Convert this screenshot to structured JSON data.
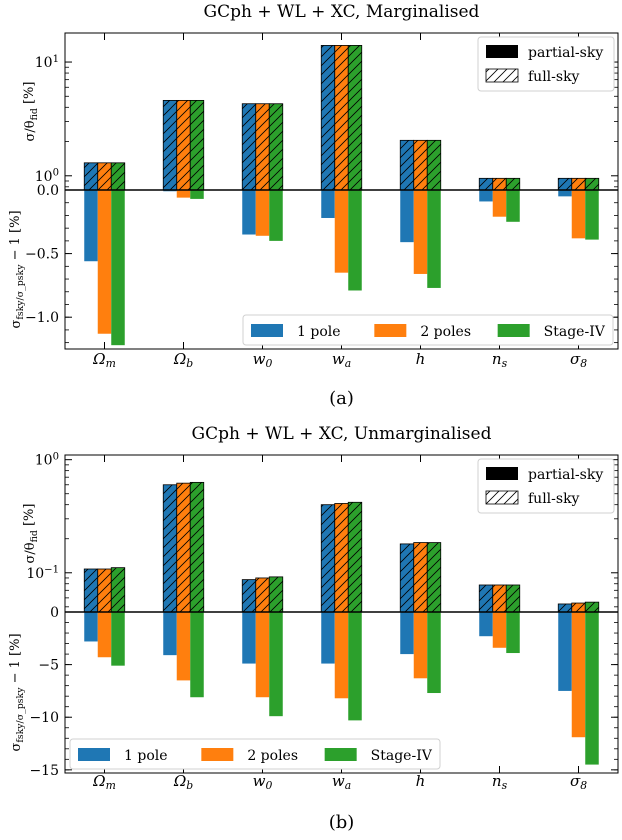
{
  "categories": [
    "Ω_m",
    "Ω_b",
    "w_0",
    "w_a",
    "h",
    "n_s",
    "σ_8"
  ],
  "colors": {
    "1 pole": "#1f77b4",
    "2 poles": "#ff7f0e",
    "Stage-IV": "#2ca02c"
  },
  "chart_data": [
    {
      "id": "a",
      "caption": "(a)",
      "title": "GCph + WL + XC, Marginalised",
      "type": "bar",
      "top_panel": {
        "ylabel": "σ/θ_fid [%]",
        "yscale": "log",
        "ylim": [
          0.75,
          18
        ],
        "yticks": [
          {
            "v": 1,
            "label": "10^0"
          },
          {
            "v": 10,
            "label": "10^1"
          }
        ],
        "legend": [
          "partial-sky",
          "full-sky"
        ],
        "legend_position": "top-right",
        "series": [
          {
            "name": "1 pole",
            "values": [
              1.3,
              4.6,
              4.3,
              14.0,
              2.05,
              0.95,
              0.95
            ]
          },
          {
            "name": "2 poles",
            "values": [
              1.3,
              4.6,
              4.3,
              14.0,
              2.05,
              0.95,
              0.95
            ]
          },
          {
            "name": "Stage-IV",
            "values": [
              1.3,
              4.6,
              4.3,
              14.0,
              2.05,
              0.95,
              0.95
            ]
          }
        ]
      },
      "bottom_panel": {
        "ylabel": "σ_fsky/σ_psky − 1 [%]",
        "ylim": [
          -1.25,
          0
        ],
        "yticks": [
          0,
          -0.5,
          -1.0
        ],
        "ytick_labels": [
          "0.0",
          "−0.5",
          "−1.0"
        ],
        "legend_position": "bottom-right",
        "series": [
          {
            "name": "1 pole",
            "values": [
              -0.56,
              -0.01,
              -0.35,
              -0.22,
              -0.41,
              -0.09,
              -0.05
            ]
          },
          {
            "name": "2 poles",
            "values": [
              -1.13,
              -0.06,
              -0.36,
              -0.65,
              -0.66,
              -0.21,
              -0.38
            ]
          },
          {
            "name": "Stage-IV",
            "values": [
              -1.22,
              -0.07,
              -0.4,
              -0.79,
              -0.77,
              -0.25,
              -0.39
            ]
          }
        ]
      }
    },
    {
      "id": "b",
      "caption": "(b)",
      "title": "GCph + WL + XC, Unmarginalised",
      "type": "bar",
      "top_panel": {
        "ylabel": "σ/θ_fid [%]",
        "yscale": "log",
        "ylim": [
          0.045,
          1.1
        ],
        "yticks": [
          {
            "v": 0.1,
            "label": "10^−1"
          },
          {
            "v": 1,
            "label": "10^0"
          }
        ],
        "legend": [
          "partial-sky",
          "full-sky"
        ],
        "legend_position": "top-right",
        "series": [
          {
            "name": "1 pole",
            "values": [
              0.108,
              0.6,
              0.087,
              0.4,
              0.18,
              0.078,
              0.053
            ]
          },
          {
            "name": "2 poles",
            "values": [
              0.108,
              0.62,
              0.09,
              0.41,
              0.185,
              0.078,
              0.054
            ]
          },
          {
            "name": "Stage-IV",
            "values": [
              0.111,
              0.63,
              0.092,
              0.42,
              0.185,
              0.078,
              0.055
            ]
          }
        ]
      },
      "bottom_panel": {
        "ylabel": "σ_fsky/σ_psky − 1 [%]",
        "ylim": [
          -15.3,
          0
        ],
        "yticks": [
          0,
          -5,
          -10,
          -15
        ],
        "ytick_labels": [
          "0",
          "−5",
          "−10",
          "−15"
        ],
        "legend_position": "bottom-left",
        "series": [
          {
            "name": "1 pole",
            "values": [
              -2.8,
              -4.1,
              -4.9,
              -4.9,
              -4.0,
              -2.3,
              -7.5
            ]
          },
          {
            "name": "2 poles",
            "values": [
              -4.3,
              -6.5,
              -8.1,
              -8.2,
              -6.3,
              -3.4,
              -11.9
            ]
          },
          {
            "name": "Stage-IV",
            "values": [
              -5.1,
              -8.1,
              -9.9,
              -10.3,
              -7.7,
              -3.9,
              -14.5
            ]
          }
        ]
      }
    }
  ]
}
